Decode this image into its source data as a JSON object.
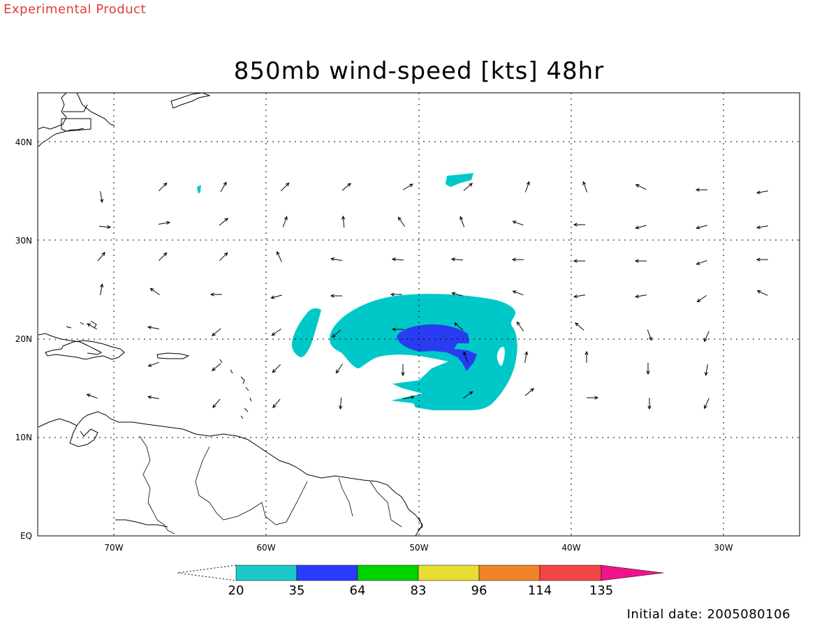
{
  "header": {
    "experimental_label": "Experimental Product",
    "title": "850mb wind-speed [kts] 48hr"
  },
  "footer": {
    "initial_date": "Initial date: 2005080106"
  },
  "axes": {
    "x_labels": [
      "70W",
      "60W",
      "50W",
      "40W",
      "30W"
    ],
    "y_labels": [
      "40N",
      "30N",
      "20N",
      "10N",
      "EQ"
    ],
    "lon_range": [
      -75,
      -25
    ],
    "lat_range": [
      0,
      45
    ]
  },
  "colorbar": {
    "labels": [
      "20",
      "35",
      "64",
      "83",
      "96",
      "114",
      "135"
    ],
    "colors": [
      "#1ec8c8",
      "#2a3cff",
      "#00d200",
      "#e6dc32",
      "#f08228",
      "#f04646",
      "#f0148c"
    ]
  },
  "wind_field": {
    "colors": {
      "level_20_35": "#00c8c8",
      "level_35_64": "#2a3cf0"
    }
  }
}
